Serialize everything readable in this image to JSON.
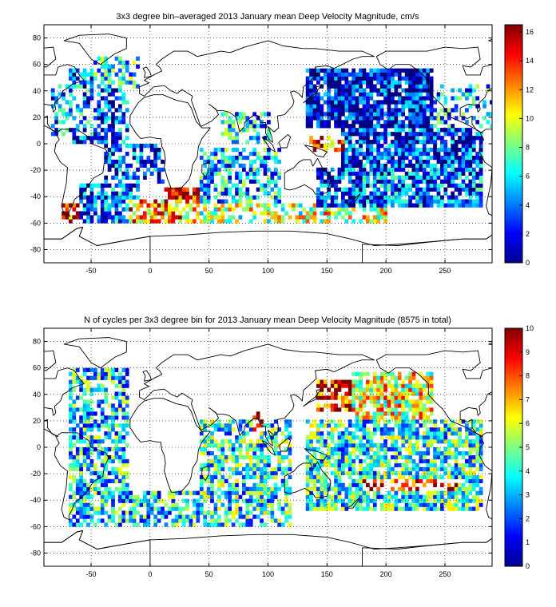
{
  "chart_data": [
    {
      "type": "heatmap",
      "title": "3x3 degree bin–averaged 2013 January mean Deep Velocity Magnitude, cm/s",
      "xlabel": "",
      "ylabel": "",
      "xlim": [
        -90,
        290
      ],
      "ylim": [
        -90,
        90
      ],
      "xticks": [
        -50,
        0,
        50,
        100,
        150,
        200,
        250
      ],
      "yticks": [
        80,
        60,
        40,
        20,
        0,
        -20,
        -40,
        -60,
        -80
      ],
      "grid": true,
      "bin_deg": 3,
      "colorbar": {
        "min": 0,
        "max": 16.5,
        "ticks": [
          0,
          2,
          4,
          6,
          8,
          10,
          12,
          14,
          16
        ],
        "colormap": "jet"
      },
      "regions": [
        {
          "lon": [
            -75,
            -45
          ],
          "lat": [
            -60,
            -45
          ],
          "value": 15.0,
          "density": 0.55
        },
        {
          "lon": [
            -60,
            -10
          ],
          "lat": [
            -60,
            -30
          ],
          "value": 3.5,
          "density": 0.75
        },
        {
          "lon": [
            -20,
            40
          ],
          "lat": [
            -60,
            -42
          ],
          "value": 12.0,
          "density": 0.6
        },
        {
          "lon": [
            10,
            40
          ],
          "lat": [
            -45,
            -35
          ],
          "value": 15.5,
          "density": 0.8
        },
        {
          "lon": [
            40,
            140
          ],
          "lat": [
            -60,
            -45
          ],
          "value": 9.0,
          "density": 0.6
        },
        {
          "lon": [
            40,
            110
          ],
          "lat": [
            -45,
            -5
          ],
          "value": 5.0,
          "density": 0.6
        },
        {
          "lon": [
            140,
            200
          ],
          "lat": [
            -62,
            -50
          ],
          "value": 10.0,
          "density": 0.55
        },
        {
          "lon": [
            140,
            280
          ],
          "lat": [
            -50,
            -20
          ],
          "value": 3.5,
          "density": 0.8
        },
        {
          "lon": [
            160,
            280
          ],
          "lat": [
            -20,
            10
          ],
          "value": 2.5,
          "density": 0.8
        },
        {
          "lon": [
            130,
            240
          ],
          "lat": [
            10,
            55
          ],
          "value": 1.5,
          "density": 0.85
        },
        {
          "lon": [
            135,
            165
          ],
          "lat": [
            -8,
            5
          ],
          "value": 13.0,
          "density": 0.5
        },
        {
          "lon": [
            -70,
            -20
          ],
          "lat": [
            0,
            55
          ],
          "value": 3.0,
          "density": 0.6
        },
        {
          "lon": [
            -50,
            -10
          ],
          "lat": [
            40,
            65
          ],
          "value": 6.0,
          "density": 0.55
        },
        {
          "lon": [
            -85,
            -45
          ],
          "lat": [
            5,
            45
          ],
          "value": 4.0,
          "density": 0.45
        },
        {
          "lon": [
            -40,
            10
          ],
          "lat": [
            -30,
            0
          ],
          "value": 3.0,
          "density": 0.55
        },
        {
          "lon": [
            60,
            100
          ],
          "lat": [
            0,
            22
          ],
          "value": 5.5,
          "density": 0.55
        },
        {
          "lon": [
            240,
            290
          ],
          "lat": [
            10,
            45
          ],
          "value": 5.0,
          "density": 0.4
        }
      ]
    },
    {
      "type": "heatmap",
      "title": "N of cycles per 3x3 degree bin for 2013 January mean Deep Velocity Magnitude (8575 in total)",
      "xlabel": "",
      "ylabel": "",
      "xlim": [
        -90,
        290
      ],
      "ylim": [
        -90,
        90
      ],
      "xticks": [
        -50,
        0,
        50,
        100,
        150,
        200,
        250
      ],
      "yticks": [
        80,
        60,
        40,
        20,
        0,
        -20,
        -40,
        -60,
        -80
      ],
      "grid": true,
      "bin_deg": 3,
      "colorbar": {
        "min": 0,
        "max": 10,
        "ticks": [
          0,
          1,
          2,
          3,
          4,
          5,
          6,
          7,
          8,
          9,
          10
        ],
        "colormap": "jet"
      },
      "regions": [
        {
          "lon": [
            140,
            170
          ],
          "lat": [
            25,
            50
          ],
          "value": 9.0,
          "density": 0.7
        },
        {
          "lon": [
            170,
            240
          ],
          "lat": [
            20,
            55
          ],
          "value": 6.0,
          "density": 0.75
        },
        {
          "lon": [
            130,
            280
          ],
          "lat": [
            -50,
            20
          ],
          "value": 4.0,
          "density": 0.75
        },
        {
          "lon": [
            -70,
            -20
          ],
          "lat": [
            -60,
            60
          ],
          "value": 3.5,
          "density": 0.6
        },
        {
          "lon": [
            40,
            120
          ],
          "lat": [
            -60,
            20
          ],
          "value": 4.0,
          "density": 0.6
        },
        {
          "lon": [
            -20,
            40
          ],
          "lat": [
            -60,
            -35
          ],
          "value": 3.5,
          "density": 0.65
        },
        {
          "lon": [
            85,
            95
          ],
          "lat": [
            10,
            25
          ],
          "value": 9.0,
          "density": 0.6
        },
        {
          "lon": [
            180,
            260
          ],
          "lat": [
            -35,
            -25
          ],
          "value": 9.0,
          "density": 0.4
        }
      ]
    }
  ]
}
